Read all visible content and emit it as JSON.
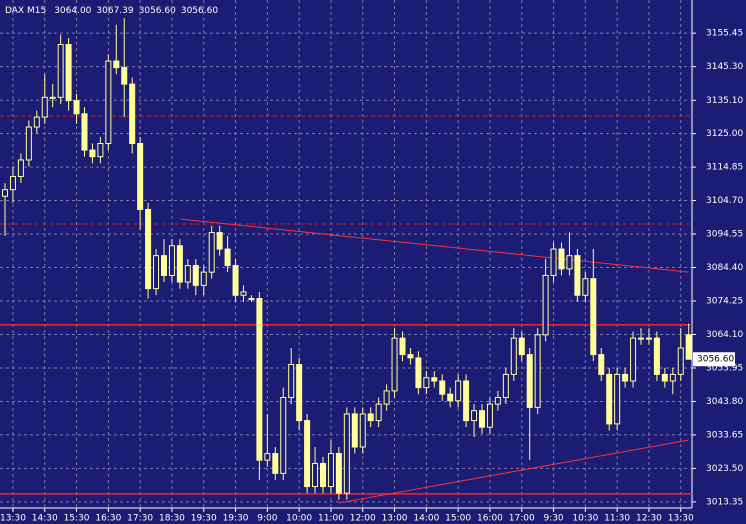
{
  "chart_data": {
    "type": "candlestick",
    "title": "DAX M15",
    "header": [
      "3064.00",
      "3067.39",
      "3056.60",
      "3056.60"
    ],
    "categories": [
      null,
      "13:30",
      null,
      null,
      null,
      "14:30",
      null,
      null,
      null,
      "15:30",
      null,
      null,
      null,
      "16:30",
      null,
      null,
      null,
      "17:30",
      null,
      null,
      null,
      "18:30",
      null,
      null,
      null,
      "19:30",
      null,
      null,
      null,
      "19:30",
      null,
      null,
      null,
      "9:00",
      null,
      null,
      null,
      "10:00",
      null,
      null,
      null,
      "11:00",
      null,
      null,
      null,
      "12:00",
      null,
      null,
      null,
      "13:00",
      null,
      null,
      null,
      "14:00",
      null,
      null,
      null,
      "15:00",
      null,
      null,
      null,
      "16:00",
      null,
      null,
      null,
      "17:00",
      null,
      null,
      null,
      "9:30",
      null,
      null,
      null,
      "10:30",
      null,
      null,
      null,
      "11:30",
      null,
      null,
      null,
      "12:30",
      null,
      null,
      null,
      "13:30",
      null
    ],
    "open": [
      3106,
      3108,
      3112,
      3117,
      3127,
      3130,
      3136,
      3136,
      3152,
      3135,
      3131,
      3120,
      3118,
      3122,
      3147,
      3145,
      3140,
      3122,
      3102,
      3078,
      3088,
      3082,
      3091,
      3080,
      3085,
      3079,
      3083,
      3095,
      3090,
      3085,
      3076,
      3075,
      3075,
      3026,
      3028,
      3022,
      3045,
      3055,
      3038,
      3018,
      3025,
      3018,
      3028,
      3016,
      3040,
      3030,
      3040,
      3038,
      3043,
      3047,
      3063,
      3058,
      3057,
      3048,
      3051,
      3050,
      3046,
      3044,
      3050,
      3038,
      3041,
      3036,
      3043,
      3045,
      3052,
      3063,
      3058,
      3042,
      3064,
      3082,
      3090,
      3084,
      3088,
      3076,
      3081,
      3058,
      3052,
      3037,
      3052,
      3050,
      3063,
      3063,
      3063,
      3052,
      3050,
      3052,
      3064
    ],
    "high": [
      3110,
      3115,
      3119,
      3129,
      3132,
      3143,
      3140,
      3155,
      3154,
      3137,
      3133,
      3122,
      3124,
      3149,
      3158,
      3160,
      3142,
      3124,
      3104,
      3090,
      3093,
      3093,
      3093,
      3087,
      3087,
      3085,
      3097,
      3097,
      3094,
      3087,
      3079,
      3076,
      3077,
      3040,
      3030,
      3048,
      3060,
      3057,
      3040,
      3030,
      3027,
      3032,
      3030,
      3042,
      3042,
      3042,
      3042,
      3045,
      3049,
      3066,
      3065,
      3060,
      3059,
      3053,
      3053,
      3052,
      3048,
      3052,
      3052,
      3043,
      3043,
      3045,
      3047,
      3054,
      3066,
      3065,
      3060,
      3066,
      3087,
      3092,
      3092,
      3095,
      3090,
      3083,
      3090,
      3060,
      3054,
      3054,
      3054,
      3065,
      3066,
      3066,
      3065,
      3054,
      3054,
      3066,
      3067.39
    ],
    "low": [
      3094,
      3104,
      3110,
      3115,
      3125,
      3128,
      3133,
      3134,
      3132,
      3128,
      3118,
      3116,
      3116,
      3120,
      3143,
      3130,
      3119,
      3096,
      3075,
      3076,
      3080,
      3080,
      3078,
      3078,
      3076,
      3076,
      3081,
      3088,
      3083,
      3074,
      3074,
      3074,
      3020,
      3024,
      3020,
      3020,
      3043,
      3035,
      3016,
      3016,
      3016,
      3016,
      3014,
      3014,
      3028,
      3028,
      3036,
      3036,
      3041,
      3045,
      3056,
      3055,
      3046,
      3046,
      3048,
      3044,
      3042,
      3042,
      3036,
      3033,
      3034,
      3034,
      3041,
      3043,
      3050,
      3056,
      3026,
      3040,
      3062,
      3080,
      3082,
      3082,
      3074,
      3074,
      3056,
      3050,
      3035,
      3035,
      3048,
      3048,
      3061,
      3061,
      3050,
      3048,
      3046,
      3050,
      3056.6
    ],
    "close": [
      3108,
      3112,
      3117,
      3127,
      3130,
      3136,
      3136,
      3152,
      3135,
      3131,
      3120,
      3118,
      3122,
      3147,
      3145,
      3140,
      3122,
      3102,
      3078,
      3088,
      3082,
      3091,
      3080,
      3085,
      3079,
      3083,
      3095,
      3090,
      3085,
      3076,
      3077,
      3075,
      3026,
      3028,
      3022,
      3045,
      3055,
      3038,
      3018,
      3025,
      3018,
      3028,
      3016,
      3040,
      3030,
      3040,
      3038,
      3043,
      3047,
      3063,
      3058,
      3057,
      3048,
      3051,
      3050,
      3046,
      3044,
      3050,
      3038,
      3041,
      3036,
      3043,
      3045,
      3052,
      3063,
      3058,
      3042,
      3064,
      3082,
      3090,
      3084,
      3088,
      3076,
      3081,
      3058,
      3052,
      3037,
      3052,
      3050,
      3063,
      3063,
      3063,
      3052,
      3050,
      3052,
      3060,
      3056.6
    ],
    "color": "#ffff99",
    "background": "#1c1c74",
    "grid": true,
    "last_label": "3056.60",
    "ylim": [
      3011.5,
      3165.5
    ],
    "yticks": [
      3155.45,
      {
        "value": 3145.3,
        "label": "3145.30"
      },
      {
        "value": 3135.1,
        "label": "3135.10"
      },
      {
        "value": 3125,
        "label": "3125.00"
      },
      3114.85,
      {
        "value": 3104.7,
        "label": "3104.70"
      },
      3094.55,
      {
        "value": 3084.4,
        "label": "3084.40"
      },
      3074.25,
      {
        "value": 3064.1,
        "label": "3064.10"
      },
      3053.95,
      {
        "value": 3043.8,
        "label": "3043.80"
      },
      3033.65,
      {
        "value": 3023.5,
        "label": "3023.50"
      },
      3013.35
    ],
    "hlines": [
      {
        "value": 3130.3,
        "color": "#c02020",
        "dashed": true
      },
      {
        "value": 3097.6,
        "color": "#c02020",
        "dashed": true
      },
      {
        "value": 3067,
        "color": "#ff2020",
        "dashed": false
      },
      {
        "value": 3015.8,
        "color": "#ff2020",
        "dashed": false
      }
    ],
    "trendlines": [
      {
        "x": [
          22,
          86
        ],
        "y": [
          3099.1,
          3083
        ],
        "color": "#ff3030"
      },
      {
        "x": [
          42,
          86
        ],
        "y": [
          3013,
          3032.1
        ],
        "color": "#ff3030"
      }
    ]
  }
}
